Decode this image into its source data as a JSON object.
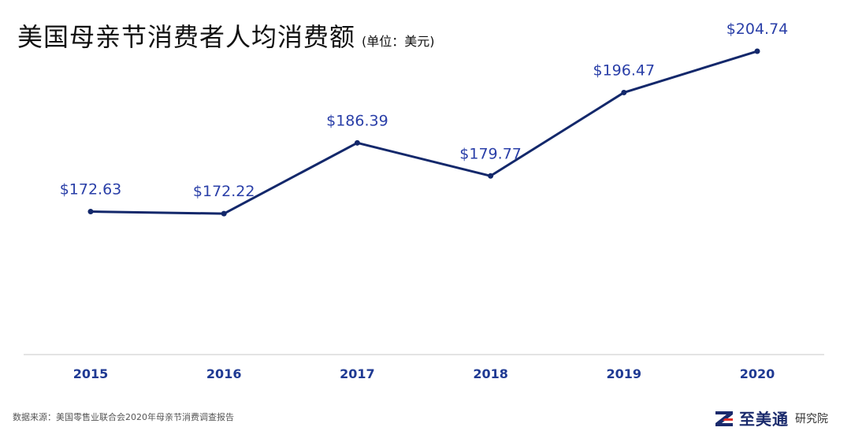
{
  "header": {
    "title": "美国母亲节消费者人均消费额",
    "unit": "(单位：美元)"
  },
  "chart_data": {
    "type": "line",
    "categories": [
      "2015",
      "2016",
      "2017",
      "2018",
      "2019",
      "2020"
    ],
    "values": [
      172.63,
      172.22,
      186.39,
      179.77,
      196.47,
      204.74
    ],
    "data_labels": [
      "$172.63",
      "$172.22",
      "$186.39",
      "$179.77",
      "$196.47",
      "$204.74"
    ],
    "ylim": [
      144,
      215
    ],
    "grid": false,
    "colors": {
      "line": "#13286b",
      "labels": "#2a3fa8",
      "ticks": "#1f3a93",
      "axis": "#c8c8c8"
    }
  },
  "footer": {
    "source": "数据来源：美国零售业联合会2020年母亲节消费调查报告",
    "brand_name": "至美通",
    "brand_sub": "研究院"
  }
}
